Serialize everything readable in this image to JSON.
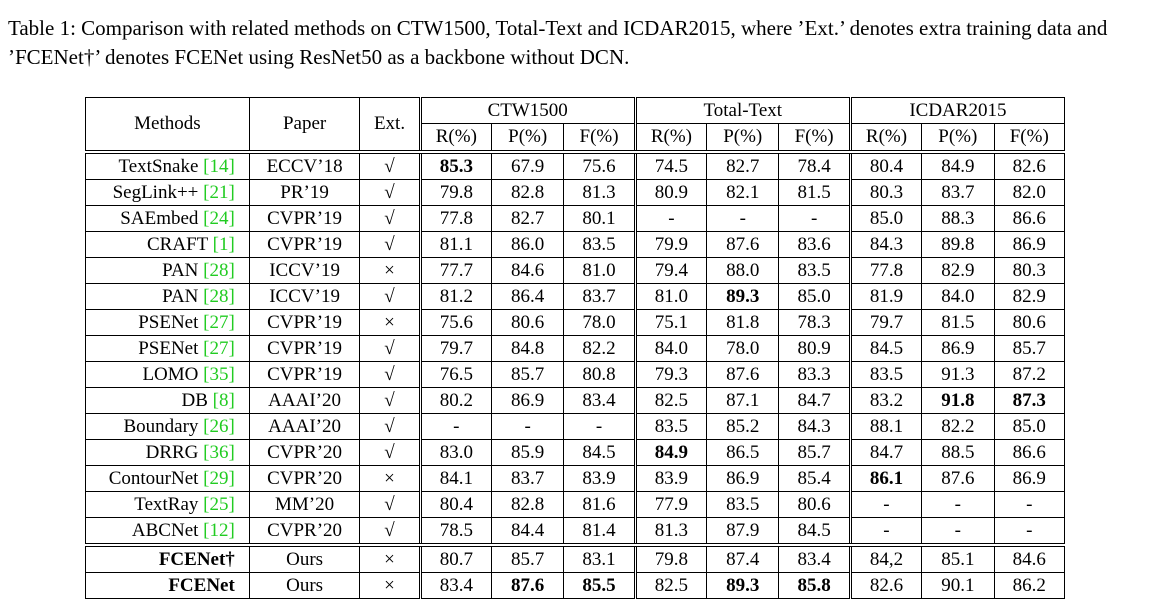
{
  "caption": "Table 1: Comparison with related methods on CTW1500, Total-Text and ICDAR2015, where ’Ext.’ denotes extra training data and ’FCENet†’ denotes FCENet using ResNet50 as a backbone without DCN.",
  "table": {
    "header": {
      "methods": "Methods",
      "paper": "Paper",
      "ext": "Ext.",
      "groups": [
        "CTW1500",
        "Total-Text",
        "ICDAR2015"
      ],
      "metrics": [
        "R(%)",
        "P(%)",
        "F(%)"
      ]
    },
    "sections": [
      [
        {
          "method": "TextSnake",
          "ref": "[14]",
          "paper": "ECCV’18",
          "ext": "√",
          "values": [
            "85.3",
            "67.9",
            "75.6",
            "74.5",
            "82.7",
            "78.4",
            "80.4",
            "84.9",
            "82.6"
          ],
          "bold_values": [
            0
          ]
        },
        {
          "method": "SegLink++",
          "ref": "[21]",
          "paper": "PR’19",
          "ext": "√",
          "values": [
            "79.8",
            "82.8",
            "81.3",
            "80.9",
            "82.1",
            "81.5",
            "80.3",
            "83.7",
            "82.0"
          ],
          "bold_values": []
        },
        {
          "method": "SAEmbed",
          "ref": "[24]",
          "paper": "CVPR’19",
          "ext": "√",
          "values": [
            "77.8",
            "82.7",
            "80.1",
            "-",
            "-",
            "-",
            "85.0",
            "88.3",
            "86.6"
          ],
          "bold_values": []
        },
        {
          "method": "CRAFT",
          "ref": "[1]",
          "paper": "CVPR’19",
          "ext": "√",
          "values": [
            "81.1",
            "86.0",
            "83.5",
            "79.9",
            "87.6",
            "83.6",
            "84.3",
            "89.8",
            "86.9"
          ],
          "bold_values": []
        },
        {
          "method": "PAN",
          "ref": "[28]",
          "paper": "ICCV’19",
          "ext": "×",
          "values": [
            "77.7",
            "84.6",
            "81.0",
            "79.4",
            "88.0",
            "83.5",
            "77.8",
            "82.9",
            "80.3"
          ],
          "bold_values": []
        },
        {
          "method": "PAN",
          "ref": "[28]",
          "paper": "ICCV’19",
          "ext": "√",
          "values": [
            "81.2",
            "86.4",
            "83.7",
            "81.0",
            "89.3",
            "85.0",
            "81.9",
            "84.0",
            "82.9"
          ],
          "bold_values": [
            4
          ]
        },
        {
          "method": "PSENet",
          "ref": "[27]",
          "paper": "CVPR’19",
          "ext": "×",
          "values": [
            "75.6",
            "80.6",
            "78.0",
            "75.1",
            "81.8",
            "78.3",
            "79.7",
            "81.5",
            "80.6"
          ],
          "bold_values": []
        },
        {
          "method": "PSENet",
          "ref": "[27]",
          "paper": "CVPR’19",
          "ext": "√",
          "values": [
            "79.7",
            "84.8",
            "82.2",
            "84.0",
            "78.0",
            "80.9",
            "84.5",
            "86.9",
            "85.7"
          ],
          "bold_values": []
        },
        {
          "method": "LOMO",
          "ref": "[35]",
          "paper": "CVPR’19",
          "ext": "√",
          "values": [
            "76.5",
            "85.7",
            "80.8",
            "79.3",
            "87.6",
            "83.3",
            "83.5",
            "91.3",
            "87.2"
          ],
          "bold_values": []
        },
        {
          "method": "DB",
          "ref": "[8]",
          "paper": "AAAI’20",
          "ext": "√",
          "values": [
            "80.2",
            "86.9",
            "83.4",
            "82.5",
            "87.1",
            "84.7",
            "83.2",
            "91.8",
            "87.3"
          ],
          "bold_values": [
            7,
            8
          ]
        },
        {
          "method": "Boundary",
          "ref": "[26]",
          "paper": "AAAI’20",
          "ext": "√",
          "values": [
            "-",
            "-",
            "-",
            "83.5",
            "85.2",
            "84.3",
            "88.1",
            "82.2",
            "85.0"
          ],
          "bold_values": []
        },
        {
          "method": "DRRG",
          "ref": "[36]",
          "paper": "CVPR’20",
          "ext": "√",
          "values": [
            "83.0",
            "85.9",
            "84.5",
            "84.9",
            "86.5",
            "85.7",
            "84.7",
            "88.5",
            "86.6"
          ],
          "bold_values": [
            3
          ]
        },
        {
          "method": "ContourNet",
          "ref": "[29]",
          "paper": "CVPR’20",
          "ext": "×",
          "values": [
            "84.1",
            "83.7",
            "83.9",
            "83.9",
            "86.9",
            "85.4",
            "86.1",
            "87.6",
            "86.9"
          ],
          "bold_values": [
            6
          ]
        },
        {
          "method": "TextRay",
          "ref": "[25]",
          "paper": "MM’20",
          "ext": "√",
          "values": [
            "80.4",
            "82.8",
            "81.6",
            "77.9",
            "83.5",
            "80.6",
            "-",
            "-",
            "-"
          ],
          "bold_values": []
        },
        {
          "method": "ABCNet",
          "ref": "[12]",
          "paper": "CVPR’20",
          "ext": "√",
          "values": [
            "78.5",
            "84.4",
            "81.4",
            "81.3",
            "87.9",
            "84.5",
            "-",
            "-",
            "-"
          ],
          "bold_values": []
        }
      ],
      [
        {
          "method": "FCENet†",
          "bold_method": true,
          "paper": "Ours",
          "ext": "×",
          "values": [
            "80.7",
            "85.7",
            "83.1",
            "79.8",
            "87.4",
            "83.4",
            "84,2",
            "85.1",
            "84.6"
          ],
          "bold_values": []
        },
        {
          "method": "FCENet",
          "bold_method": true,
          "paper": "Ours",
          "ext": "×",
          "values": [
            "83.4",
            "87.6",
            "85.5",
            "82.5",
            "89.3",
            "85.8",
            "82.6",
            "90.1",
            "86.2"
          ],
          "bold_values": [
            1,
            2,
            4,
            5
          ]
        }
      ]
    ]
  }
}
